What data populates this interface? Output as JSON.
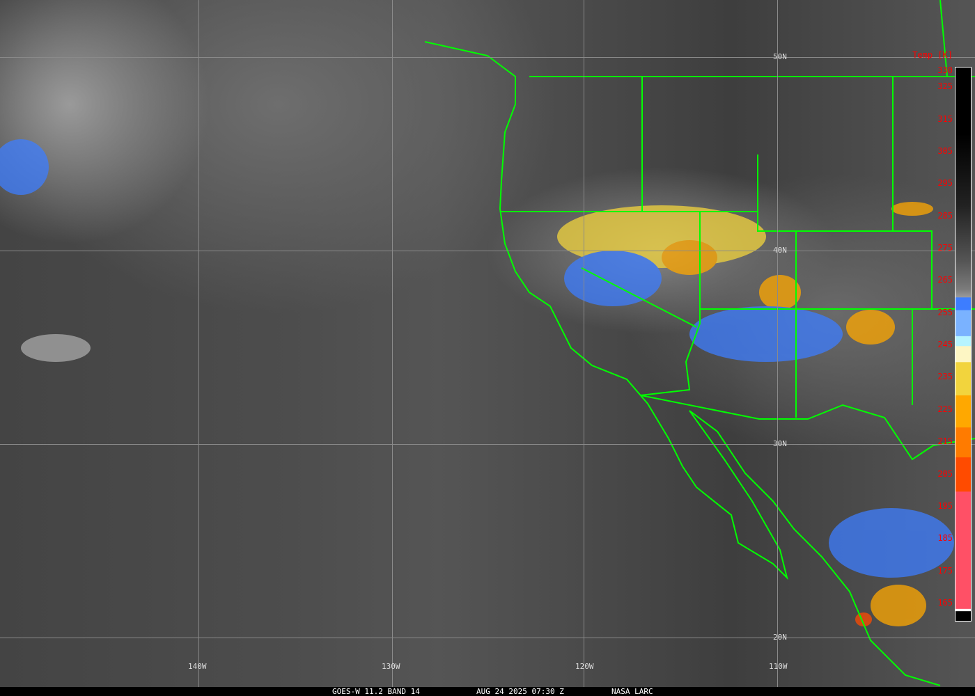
{
  "map": {
    "latitude_labels": [
      "50N",
      "40N",
      "30N",
      "20N"
    ],
    "longitude_labels": [
      "140W",
      "130W",
      "120W",
      "110W"
    ],
    "coastline_color": "#00ff00",
    "grid_color": "#8a8a8a"
  },
  "legend": {
    "title": "Temp [K]",
    "ticks": [
      "330",
      "325",
      "315",
      "305",
      "295",
      "285",
      "275",
      "265",
      "255",
      "245",
      "235",
      "225",
      "215",
      "205",
      "195",
      "185",
      "175",
      "165"
    ],
    "label_color": "#ff0000"
  },
  "footer": {
    "product": "GOES-W 11.2 BAND 14",
    "datetime": "AUG 24 2025 07:30 Z",
    "source": "NASA LARC"
  }
}
